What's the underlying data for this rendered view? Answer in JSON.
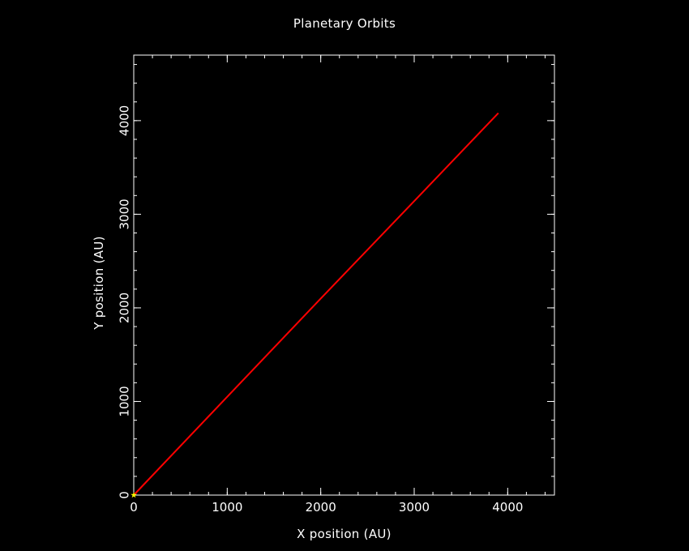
{
  "chart_data": {
    "type": "line",
    "title": "Planetary Orbits",
    "xlabel": "X position (AU)",
    "ylabel": "Y position (AU)",
    "xlim": [
      0,
      4500
    ],
    "ylim": [
      0,
      4700
    ],
    "xticks": [
      0,
      1000,
      2000,
      3000,
      4000
    ],
    "yticks": [
      0,
      1000,
      2000,
      3000,
      4000
    ],
    "xtick_labels": [
      "0",
      "1000",
      "2000",
      "3000",
      "4000"
    ],
    "ytick_labels": [
      "0",
      "1000",
      "2000",
      "3000",
      "4000"
    ],
    "x_minor_step": 200,
    "y_minor_step": 200,
    "grid": false,
    "series": [
      {
        "color": "#ff0000",
        "x": [
          0,
          1000,
          2000,
          3000,
          3900
        ],
        "y": [
          0,
          1050,
          2100,
          3140,
          4080
        ]
      }
    ],
    "markers": [
      {
        "shape": "star",
        "color": "#ffff00",
        "x": 0,
        "y": 0
      }
    ],
    "colors": {
      "background": "#000000",
      "axes": "#ffffff",
      "text": "#ffffff"
    }
  }
}
